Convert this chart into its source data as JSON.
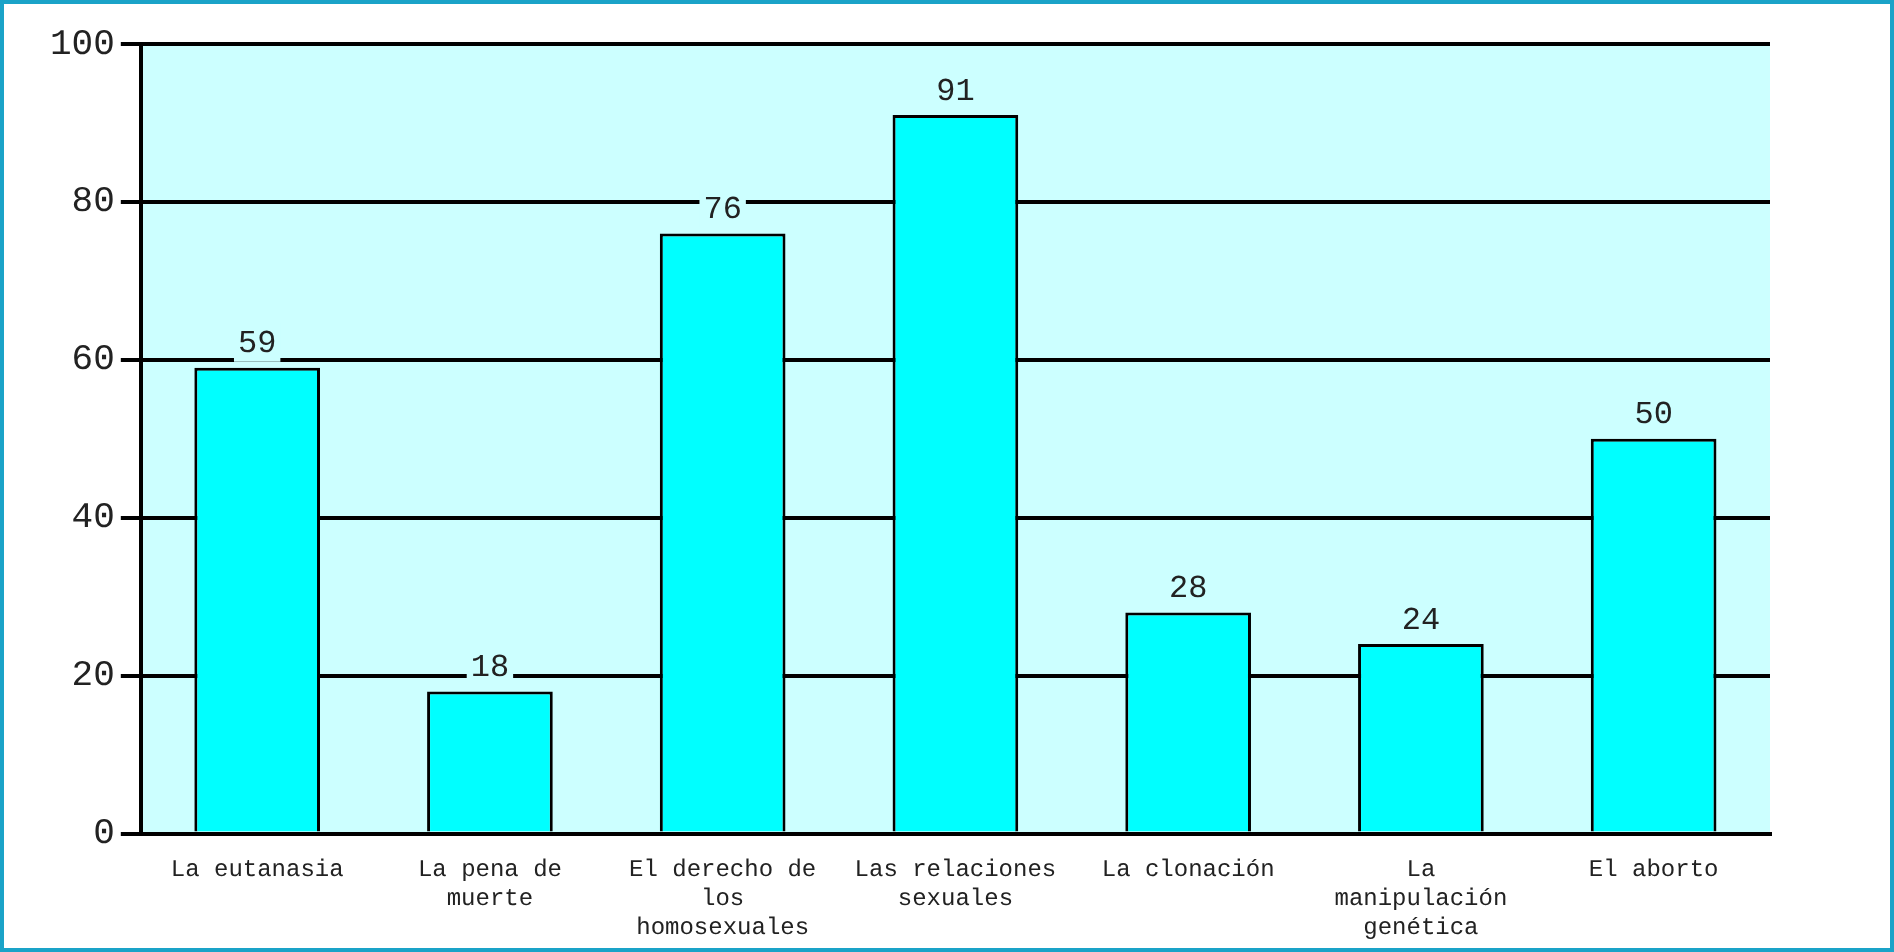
{
  "chart_data": {
    "type": "bar",
    "categories": [
      "La eutanasia",
      "La pena de muerte",
      "El derecho de los homosexuales",
      "Las relaciones sexuales",
      "La clonación",
      "La manipulación genética",
      "El aborto"
    ],
    "values": [
      59,
      18,
      76,
      91,
      28,
      24,
      50
    ],
    "color": "#00ffff",
    "ylim": [
      0,
      100
    ],
    "yticks": [
      0,
      20,
      40,
      60,
      80,
      100
    ],
    "grid": "y",
    "data_labels": true
  }
}
